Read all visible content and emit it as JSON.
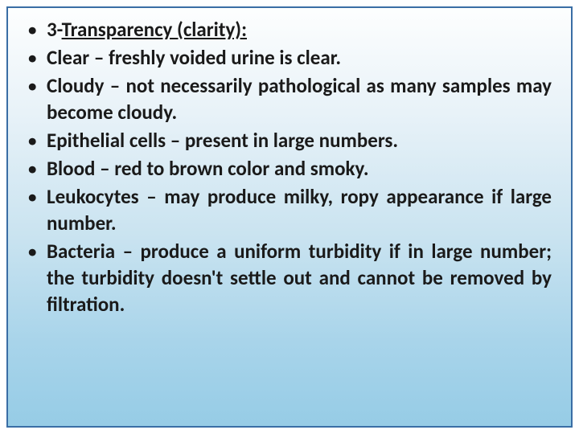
{
  "slide": {
    "background_gradient_top": "#fdfefe",
    "background_gradient_mid1": "#e8f2f8",
    "background_gradient_mid2": "#c9e3f0",
    "background_gradient_bottom": "#96cce6",
    "border_color": "#3a6ea5",
    "text_color": "#1a1a1a",
    "font_family": "Calibri",
    "font_size_pt": 19,
    "font_weight": "bold",
    "bullets": [
      {
        "prefix": "3-",
        "term": "Transparency (clarity):",
        "term_underlined": true,
        "body": "",
        "justify": false
      },
      {
        "prefix": "",
        "term": "Clear",
        "term_underlined": false,
        "body": " – freshly voided urine is clear.",
        "justify": false
      },
      {
        "prefix": "",
        "term": "Cloudy",
        "term_underlined": false,
        "body": " – not necessarily pathological as many samples may become cloudy.",
        "justify": true
      },
      {
        "prefix": "",
        "term": "Epithelial cells",
        "term_underlined": false,
        "body": " – present in large numbers.",
        "justify": false
      },
      {
        "prefix": "",
        "term": "Blood",
        "term_underlined": false,
        "body": " – red to brown color and smoky.",
        "justify": false
      },
      {
        "prefix": "",
        "term": "Leukocytes",
        "term_underlined": false,
        "body": " – may produce milky, ropy appearance if large number.",
        "justify": true
      },
      {
        "prefix": "",
        "term": "Bacteria",
        "term_underlined": false,
        "body": " – produce a uniform turbidity if in large number; the turbidity doesn't settle out and cannot be removed by filtration.",
        "justify": true
      }
    ],
    "bullet_char": "•"
  }
}
